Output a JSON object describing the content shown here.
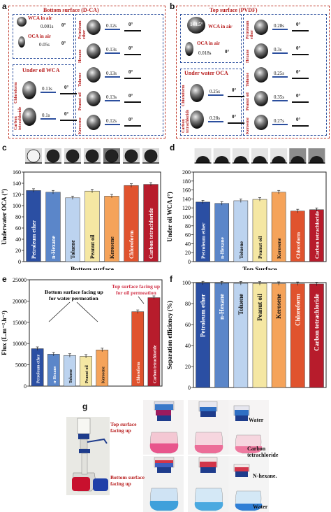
{
  "panel_a": {
    "letter": "a",
    "title": "Bottom surface  (D-CA)",
    "wca_label": "WCA in air",
    "oca_label": "OCA in air",
    "wca_time": "0.001s",
    "oca_time": "0.05s",
    "under_oil_label": "Under oil WCA",
    "zero": "0°",
    "rows_right": [
      {
        "name": "Petroleum ether",
        "time": "0.12s"
      },
      {
        "name": "Hexane",
        "time": "0.13s"
      },
      {
        "name": "Toluene",
        "time": "0.13s"
      },
      {
        "name": "Peanut oil",
        "time": "0.13s"
      },
      {
        "name": "Kerosene",
        "time": "0.12s"
      }
    ],
    "rows_left": [
      {
        "name": "Chloroform",
        "time": "0.11s"
      },
      {
        "name": "Carbon tetrachloride",
        "time": "0.1s"
      }
    ]
  },
  "panel_b": {
    "letter": "b",
    "title": "Top surface  (PVDF)",
    "wca_value": "140.5°",
    "wca_label": "WCA in air",
    "oca_label": "OCA in air",
    "oca_time": "0.018s",
    "under_water_label": "Under water OCA",
    "zero": "0°",
    "rows_right": [
      {
        "name": "Petroleum ether",
        "time": "0.28s"
      },
      {
        "name": "Hexane",
        "time": "0.3s"
      },
      {
        "name": "Toluene",
        "time": "0.25s"
      },
      {
        "name": "Peanut oil",
        "time": "0.35s"
      },
      {
        "name": "Kerosene",
        "time": "0.27s"
      }
    ],
    "rows_left": [
      {
        "name": "Chloroform",
        "time": "0.25s"
      },
      {
        "name": "Carbon tetrachloride",
        "time": "0.28s"
      }
    ]
  },
  "panel_c_letter": "c",
  "panel_d_letter": "d",
  "panel_e_letter": "e",
  "panel_f_letter": "f",
  "panel_g_letter": "g",
  "chart_data": [
    {
      "id": "c",
      "type": "bar",
      "ylabel": "Underwater OCA (°)",
      "xlabel": "Bottom surface",
      "ylim": [
        0,
        160
      ],
      "yticks": [
        0,
        20,
        40,
        60,
        80,
        100,
        120,
        140,
        160
      ],
      "categories": [
        "Petroleum ether",
        "n-Hexane",
        "Toluene",
        "Peanut oil",
        "Kerosene",
        "Chloroform",
        "Carbon tetrachloride"
      ],
      "values": [
        127,
        124,
        114,
        126,
        117,
        136,
        138
      ],
      "colors": [
        "#2b4fa3",
        "#5b86c9",
        "#bcd3ef",
        "#f5e7a3",
        "#f5a35a",
        "#e0532e",
        "#b71c2c"
      ]
    },
    {
      "id": "d",
      "type": "bar",
      "ylabel": "Under oil WCA (°)",
      "xlabel": "Top Surface",
      "ylim": [
        0,
        200
      ],
      "yticks": [
        0,
        20,
        40,
        60,
        80,
        100,
        120,
        140,
        160,
        180,
        200
      ],
      "categories": [
        "Petroleum ether",
        "n-Hexane",
        "Toluene",
        "Peanut oil",
        "Kerosene",
        "Chloroform",
        "Carbon tetrachloride"
      ],
      "values": [
        133,
        130,
        136,
        139,
        155,
        113,
        116
      ],
      "colors": [
        "#2b4fa3",
        "#5b86c9",
        "#bcd3ef",
        "#f5e7a3",
        "#f5a35a",
        "#e0532e",
        "#b71c2c"
      ]
    },
    {
      "id": "e",
      "type": "bar",
      "ylabel": "Flux (L.m⁻².h⁻¹)",
      "ylim": [
        0,
        25000
      ],
      "yticks": [
        0,
        5000,
        10000,
        15000,
        20000,
        25000
      ],
      "categories": [
        "Petroleum ether",
        "n-Hexane",
        "Toluene",
        "Peanut oil",
        "Kerosene",
        "Chloroform",
        "Carbon tetrachloride"
      ],
      "values": [
        8800,
        7500,
        7200,
        7000,
        8500,
        17500,
        20800
      ],
      "colors": [
        "#2b4fa3",
        "#5b86c9",
        "#bcd3ef",
        "#f5e7a3",
        "#f5a35a",
        "#e0532e",
        "#b71c2c"
      ],
      "annotations": [
        "Bottom surface facing up for water permeation",
        "Top surface facing up for oil permeation"
      ]
    },
    {
      "id": "f",
      "type": "bar",
      "ylabel": "Separation efficiency (%)",
      "ylim": [
        0,
        100
      ],
      "yticks": [
        0,
        20,
        40,
        60,
        80,
        100
      ],
      "categories": [
        "Petroleum ether",
        "n-Hexane",
        "Toluene",
        "Peanut oil",
        "Kerosene",
        "Chloroform",
        "Carbon tetrachloride"
      ],
      "values": [
        99.5,
        99.4,
        99.3,
        99.2,
        99.0,
        98.9,
        98.7
      ],
      "colors": [
        "#2b4fa3",
        "#5b86c9",
        "#bcd3ef",
        "#f5e7a3",
        "#f5a35a",
        "#e0532e",
        "#b71c2c"
      ]
    }
  ],
  "panel_g": {
    "top_label": "Top surface facing up",
    "bottom_label": "Bottom surface facing up",
    "water": "Water",
    "carbon_tet": "Carbon tetrachloride",
    "n_hexane": "N-hexane.",
    "water_bottom": "Water"
  }
}
